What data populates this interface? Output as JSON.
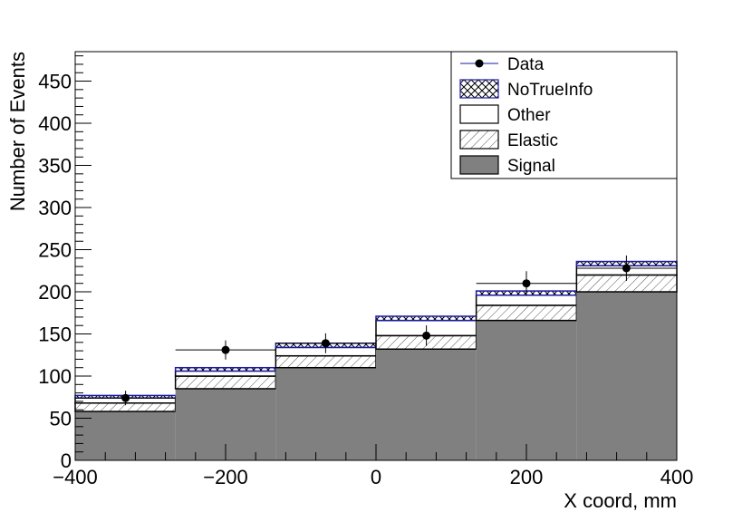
{
  "chart_data": {
    "type": "bar",
    "stacked": true,
    "xlabel": "X coord, mm",
    "ylabel": "Number of Events",
    "xlim": [
      -400,
      400
    ],
    "ylim": [
      0,
      485
    ],
    "x_ticks": [
      "−400",
      "−200",
      "0",
      "200",
      "400"
    ],
    "x_tick_values": [
      -400,
      -200,
      0,
      200,
      400
    ],
    "y_ticks": [
      "0",
      "50",
      "100",
      "150",
      "200",
      "250",
      "300",
      "350",
      "400",
      "450"
    ],
    "y_tick_values": [
      0,
      50,
      100,
      150,
      200,
      250,
      300,
      350,
      400,
      450
    ],
    "bin_edges": [
      -400,
      -266.7,
      -133.3,
      0,
      133.3,
      266.7,
      400
    ],
    "series": [
      {
        "name": "Signal",
        "values": [
          58,
          85,
          110,
          132,
          166,
          200
        ],
        "color": "#808080",
        "style": "solid"
      },
      {
        "name": "Elastic",
        "values": [
          10,
          15,
          14,
          16,
          18,
          20
        ],
        "color": "#000000",
        "style": "hatch"
      },
      {
        "name": "Other",
        "values": [
          6,
          6,
          10,
          18,
          12,
          11
        ],
        "color": "#ffffff",
        "style": "open"
      },
      {
        "name": "NoTrueInfo",
        "values": [
          3,
          4,
          5,
          5,
          5,
          5
        ],
        "color": "#1a1aa6",
        "style": "crosshatch"
      }
    ],
    "data_points": {
      "name": "Data",
      "x": [
        -333,
        -200,
        -67,
        67,
        200,
        333
      ],
      "y": [
        74,
        131,
        139,
        148,
        210,
        228
      ],
      "yerr": [
        8.6,
        11.4,
        11.8,
        12.2,
        14.5,
        15.1
      ]
    },
    "legend": [
      "Data",
      "NoTrueInfo",
      "Other",
      "Elastic",
      "Signal"
    ],
    "legend_position": "top-right",
    "grid": false
  }
}
